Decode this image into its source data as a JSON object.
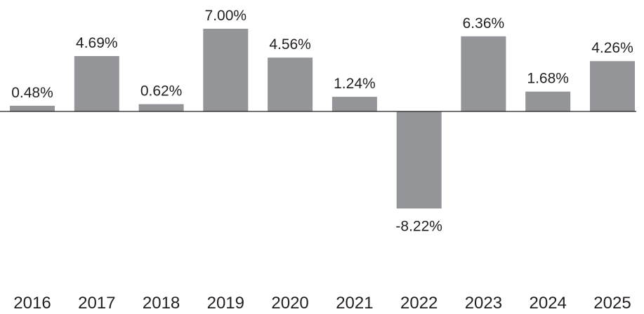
{
  "chart_data": {
    "type": "bar",
    "categories": [
      "2016",
      "2017",
      "2018",
      "2019",
      "2020",
      "2021",
      "2022",
      "2023",
      "2024",
      "2025"
    ],
    "values": [
      0.48,
      4.69,
      0.62,
      7.0,
      4.56,
      1.24,
      -8.22,
      6.36,
      1.68,
      4.26
    ],
    "data_labels": [
      "0.48%",
      "4.69%",
      "0.62%",
      "7.00%",
      "4.56%",
      "1.24%",
      "-8.22%",
      "6.36%",
      "1.68%",
      "4.26%"
    ],
    "title": "",
    "xlabel": "",
    "ylabel": "",
    "ylim": [
      -8.22,
      7.0
    ],
    "grid": false,
    "legend": "none",
    "bar_color": "#939598",
    "text_color": "#231f20"
  }
}
